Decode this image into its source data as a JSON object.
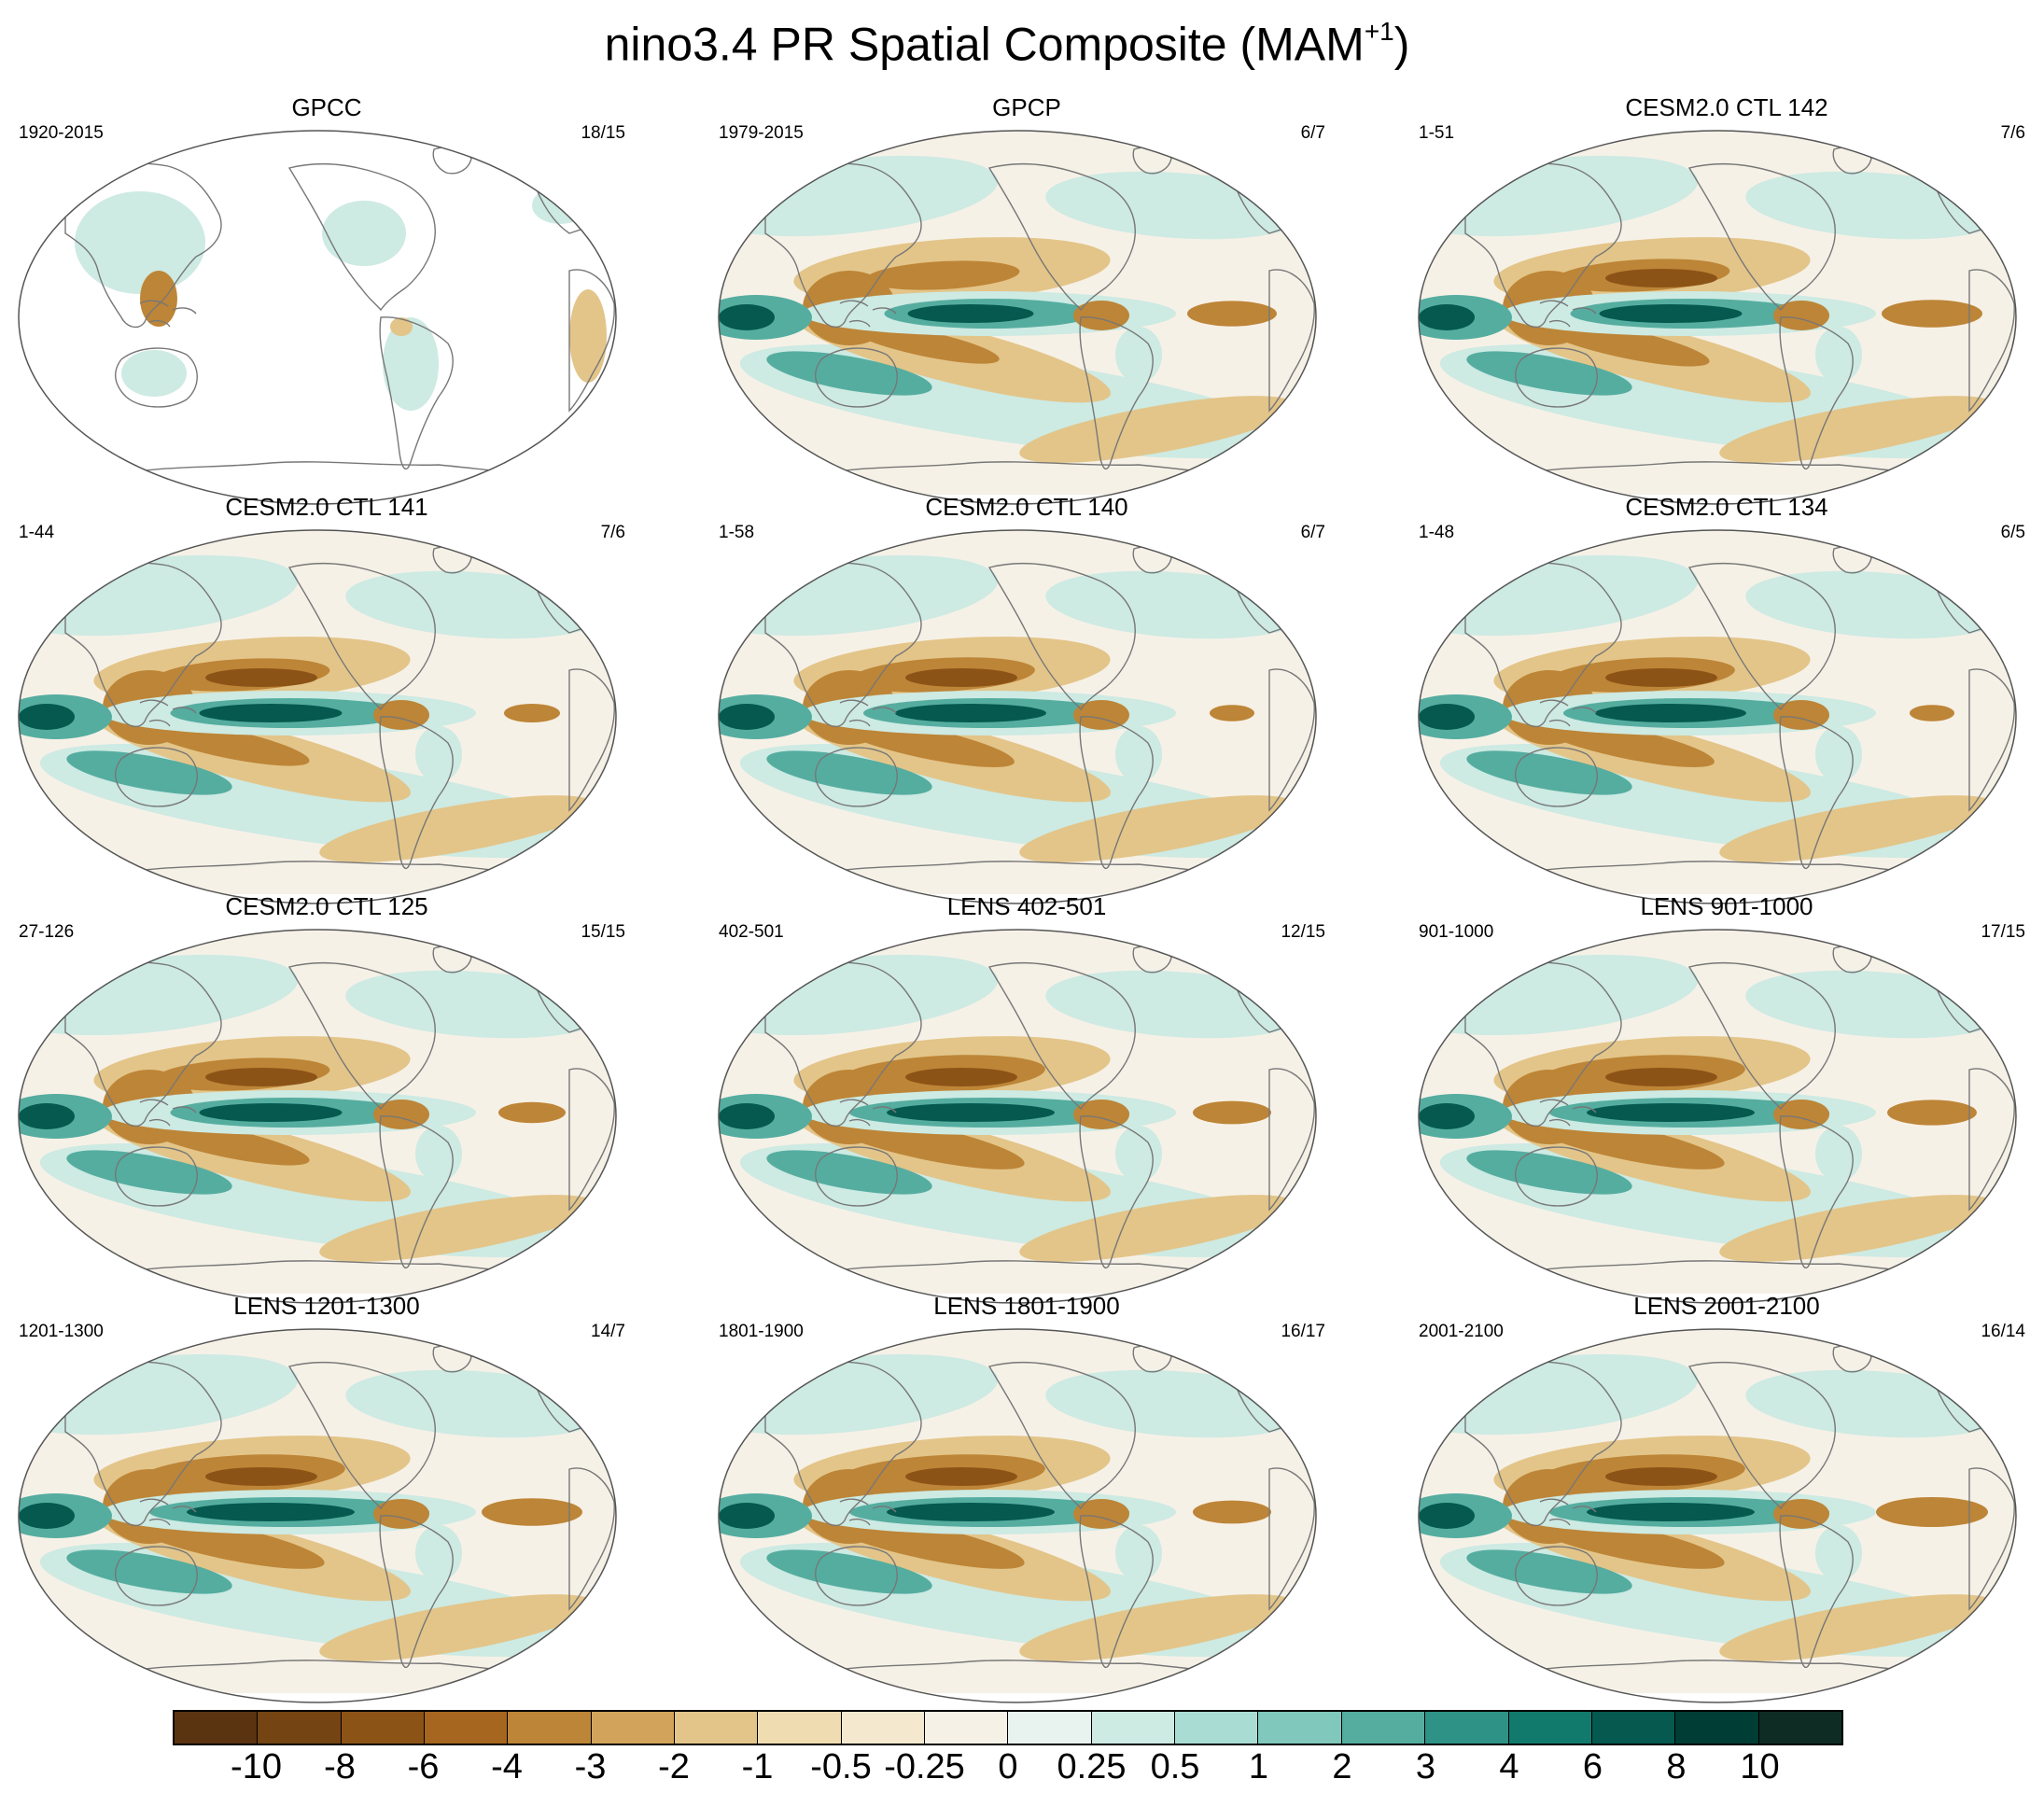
{
  "title": {
    "text": "nino3.4 PR Spatial Composite (MAM",
    "superscript": "+1",
    "close": ")"
  },
  "panels": [
    {
      "title": "GPCC",
      "left": "1920-2015",
      "right": "18/15",
      "type": "gpcc",
      "strength": 0.6,
      "east_atl": 0.2
    },
    {
      "title": "GPCP",
      "left": "1979-2015",
      "right": "6/7",
      "type": "model",
      "strength": 0.75,
      "east_atl": 0.8
    },
    {
      "title": "CESM2.0 CTL 142",
      "left": "1-51",
      "right": "7/6",
      "type": "model",
      "strength": 0.85,
      "east_atl": 0.9
    },
    {
      "title": "CESM2.0 CTL 141",
      "left": "1-44",
      "right": "7/6",
      "type": "model",
      "strength": 0.85,
      "east_atl": 0.5
    },
    {
      "title": "CESM2.0 CTL 140",
      "left": "1-58",
      "right": "6/7",
      "type": "model",
      "strength": 0.9,
      "east_atl": 0.4
    },
    {
      "title": "CESM2.0 CTL 134",
      "left": "1-48",
      "right": "6/5",
      "type": "model",
      "strength": 0.9,
      "east_atl": 0.4
    },
    {
      "title": "CESM2.0 CTL 125",
      "left": "27-126",
      "right": "15/15",
      "type": "model",
      "strength": 0.85,
      "east_atl": 0.6
    },
    {
      "title": "LENS 402-501",
      "left": "402-501",
      "right": "12/15",
      "type": "model",
      "strength": 1.0,
      "east_atl": 0.7
    },
    {
      "title": "LENS 901-1000",
      "left": "901-1000",
      "right": "17/15",
      "type": "model",
      "strength": 1.0,
      "east_atl": 0.8
    },
    {
      "title": "LENS 1201-1300",
      "left": "1201-1300",
      "right": "14/7",
      "type": "model",
      "strength": 1.0,
      "east_atl": 0.9
    },
    {
      "title": "LENS 1801-1900",
      "left": "1801-1900",
      "right": "16/17",
      "type": "model",
      "strength": 1.0,
      "east_atl": 0.7
    },
    {
      "title": "LENS 2001-2100",
      "left": "2001-2100",
      "right": "16/14",
      "type": "model",
      "strength": 1.0,
      "east_atl": 1.0
    }
  ],
  "colorbar": {
    "labels": [
      "-10",
      "-8",
      "-6",
      "-4",
      "-3",
      "-2",
      "-1",
      "-0.5",
      "-0.25",
      "0",
      "0.25",
      "0.5",
      "1",
      "2",
      "3",
      "4",
      "6",
      "8",
      "10"
    ],
    "colors": [
      "#5a3410",
      "#744412",
      "#8c5317",
      "#a6661f",
      "#bd8537",
      "#d2a45b",
      "#e3c589",
      "#efdcb0",
      "#f4e9ce",
      "#f6f1e7",
      "#e8f2ef",
      "#cdeae3",
      "#a9ddd3",
      "#7fc8bb",
      "#55ada0",
      "#2e9386",
      "#117a6d",
      "#05594f",
      "#003d34",
      "#0f2c24"
    ]
  },
  "map_colors": {
    "dry_strong": "#8c5317",
    "dry_med": "#bd8537",
    "dry_light": "#e3c589",
    "neutral": "#f6f1e7",
    "wet_light": "#cdeae3",
    "wet_med": "#55ada0",
    "wet_strong": "#05594f",
    "coast": "#777777"
  }
}
